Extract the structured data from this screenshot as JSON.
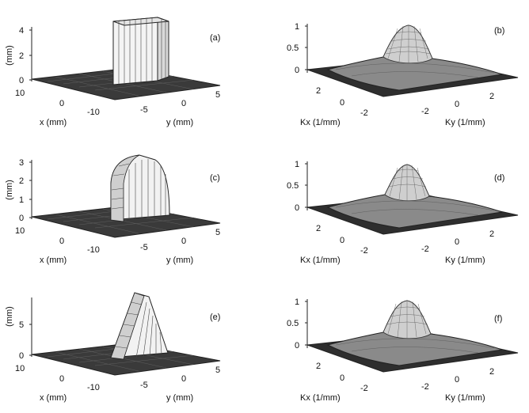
{
  "figure": {
    "panels": [
      {
        "id": "a",
        "panel_label": "(a)",
        "kind": "spatial",
        "shape": "box",
        "z_axis_label": "(mm)",
        "z_ticks": [
          "4",
          "2",
          "0"
        ],
        "x_axis_label": "x (mm)",
        "x_ticks": [
          "10",
          "0",
          "-10"
        ],
        "y_axis_label": "y (mm)",
        "y_ticks": [
          "-5",
          "0",
          "5"
        ]
      },
      {
        "id": "b",
        "panel_label": "(b)",
        "kind": "spectrum",
        "z_ticks": [
          "1",
          "0.5",
          "0"
        ],
        "x_axis_label": "Kx (1/mm)",
        "x_ticks": [
          "2",
          "0",
          "-2"
        ],
        "y_axis_label": "Ky (1/mm)",
        "y_ticks": [
          "-2",
          "0",
          "2"
        ]
      },
      {
        "id": "c",
        "panel_label": "(c)",
        "kind": "spatial",
        "shape": "semicircle",
        "z_axis_label": "(mm)",
        "z_ticks": [
          "3",
          "2",
          "1",
          "0"
        ],
        "x_axis_label": "x (mm)",
        "x_ticks": [
          "10",
          "0",
          "-10"
        ],
        "y_axis_label": "y (mm)",
        "y_ticks": [
          "-5",
          "0",
          "5"
        ]
      },
      {
        "id": "d",
        "panel_label": "(d)",
        "kind": "spectrum",
        "z_ticks": [
          "1",
          "0.5",
          "0"
        ],
        "x_axis_label": "Kx (1/mm)",
        "x_ticks": [
          "2",
          "0",
          "-2"
        ],
        "y_axis_label": "Ky (1/mm)",
        "y_ticks": [
          "-2",
          "0",
          "2"
        ]
      },
      {
        "id": "e",
        "panel_label": "(e)",
        "kind": "spatial",
        "shape": "triangle",
        "z_axis_label": "(mm)",
        "z_ticks": [
          "5",
          "0"
        ],
        "x_axis_label": "x (mm)",
        "x_ticks": [
          "10",
          "0",
          "-10"
        ],
        "y_axis_label": "y (mm)",
        "y_ticks": [
          "-5",
          "0",
          "5"
        ]
      },
      {
        "id": "f",
        "panel_label": "(f)",
        "kind": "spectrum",
        "z_ticks": [
          "1",
          "0.5",
          "0"
        ],
        "x_axis_label": "Kx (1/mm)",
        "x_ticks": [
          "2",
          "0",
          "-2"
        ],
        "y_axis_label": "Ky (1/mm)",
        "y_ticks": [
          "-2",
          "0",
          "2"
        ]
      }
    ]
  }
}
